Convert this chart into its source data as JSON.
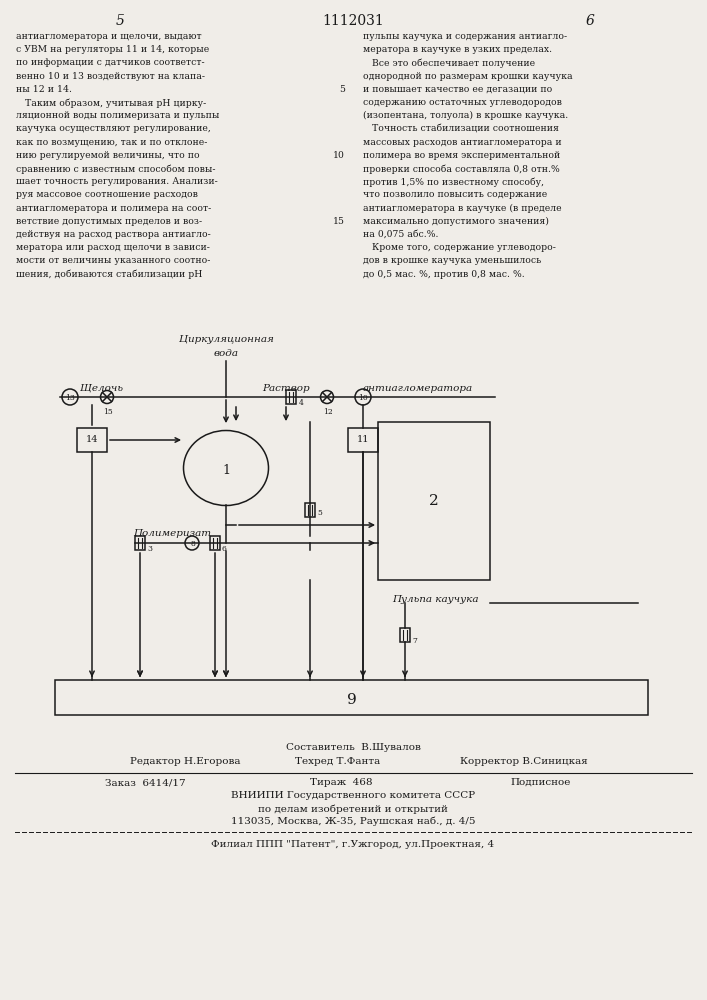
{
  "page_number_left": "5",
  "page_number_center": "1112031",
  "page_number_right": "6",
  "col_left_text": [
    "антиагломератора и щелочи, выдают",
    "с УВМ на регуляторы 11 и 14, которые",
    "по информации с датчиков соответст-",
    "венно 10 и 13 воздействуют на клапа-",
    "ны 12 и 14.",
    "   Таким образом, учитывая рН цирку-",
    "ляционной воды полимеризата и пульпы",
    "каучука осуществляют регулирование,",
    "как по возмущению, так и по отклоне-",
    "нию регулируемой величины, что по",
    "сравнению с известным способом повы-",
    "шает точность регулирования. Анализи-",
    "руя массовое соотношение расходов",
    "антиагломератора и полимера на соот-",
    "ветствие допустимых пределов и воз-",
    "действуя на расход раствора антиагло-",
    "мератора или расход щелочи в зависи-",
    "мости от величины указанного соотно-",
    "шения, добиваются стабилизации рН"
  ],
  "col_right_text": [
    "пульпы каучука и содержания антиагло-",
    "мератора в каучуке в узких пределах.",
    "   Все это обеспечивает получение",
    "однородной по размерам крошки каучука",
    "и повышает качество ее дегазации по",
    "содержанию остаточных углеводородов",
    "(изопентана, толуола) в крошке каучука.",
    "   Точность стабилизации соотношения",
    "массовых расходов антиагломератора и",
    "полимера во время экспериментальной",
    "проверки способа составляла 0,8 отн.%",
    "против 1,5% по известному способу,",
    "что позволило повысить содержание",
    "антиагломератора в каучуке (в пределе",
    "максимально допустимого значения)",
    "на 0,075 абс.%.",
    "   Кроме того, содержание углеводоро-",
    "дов в крошке каучука уменьшилось",
    "до 0,5 мас. %, против 0,8 мас. %."
  ],
  "right_line_numbers": {
    "4": "5",
    "9": "10",
    "14": "15"
  },
  "diagram_label_cirk_line1": "Циркуляционная",
  "diagram_label_cirk_line2": "вода",
  "diagram_label_sheloch": "Щелочь",
  "diagram_label_rastvor": "Раствор",
  "diagram_label_antiag": "антиагломератора",
  "diagram_label_polimer": "Полимеризат",
  "diagram_label_pulpa": "Пульпа каучука",
  "footer_sostavitel": "Составитель  В.Шувалов",
  "footer_redaktor_l": "Редактор Н.Егорова",
  "footer_redaktor_c": "Техред Т.Фанта",
  "footer_redaktor_r": "Корректор В.Синицкая",
  "footer_zakaz": "Заказ  6414/17",
  "footer_tirazh": "Тираж  468",
  "footer_podpisnoe": "Подписное",
  "footer_vniip1": "ВНИИПИ Государственного комитета СССР",
  "footer_vniip2": "по делам изобретений и открытий",
  "footer_vniip3": "113035, Москва, Ж-35, Раушская наб., д. 4/5",
  "footer_filial": "Филиал ППП \"Патент\", г.Ужгород, ул.Проектная, 4",
  "bg_color": "#f0ede8",
  "text_color": "#1a1a1a"
}
